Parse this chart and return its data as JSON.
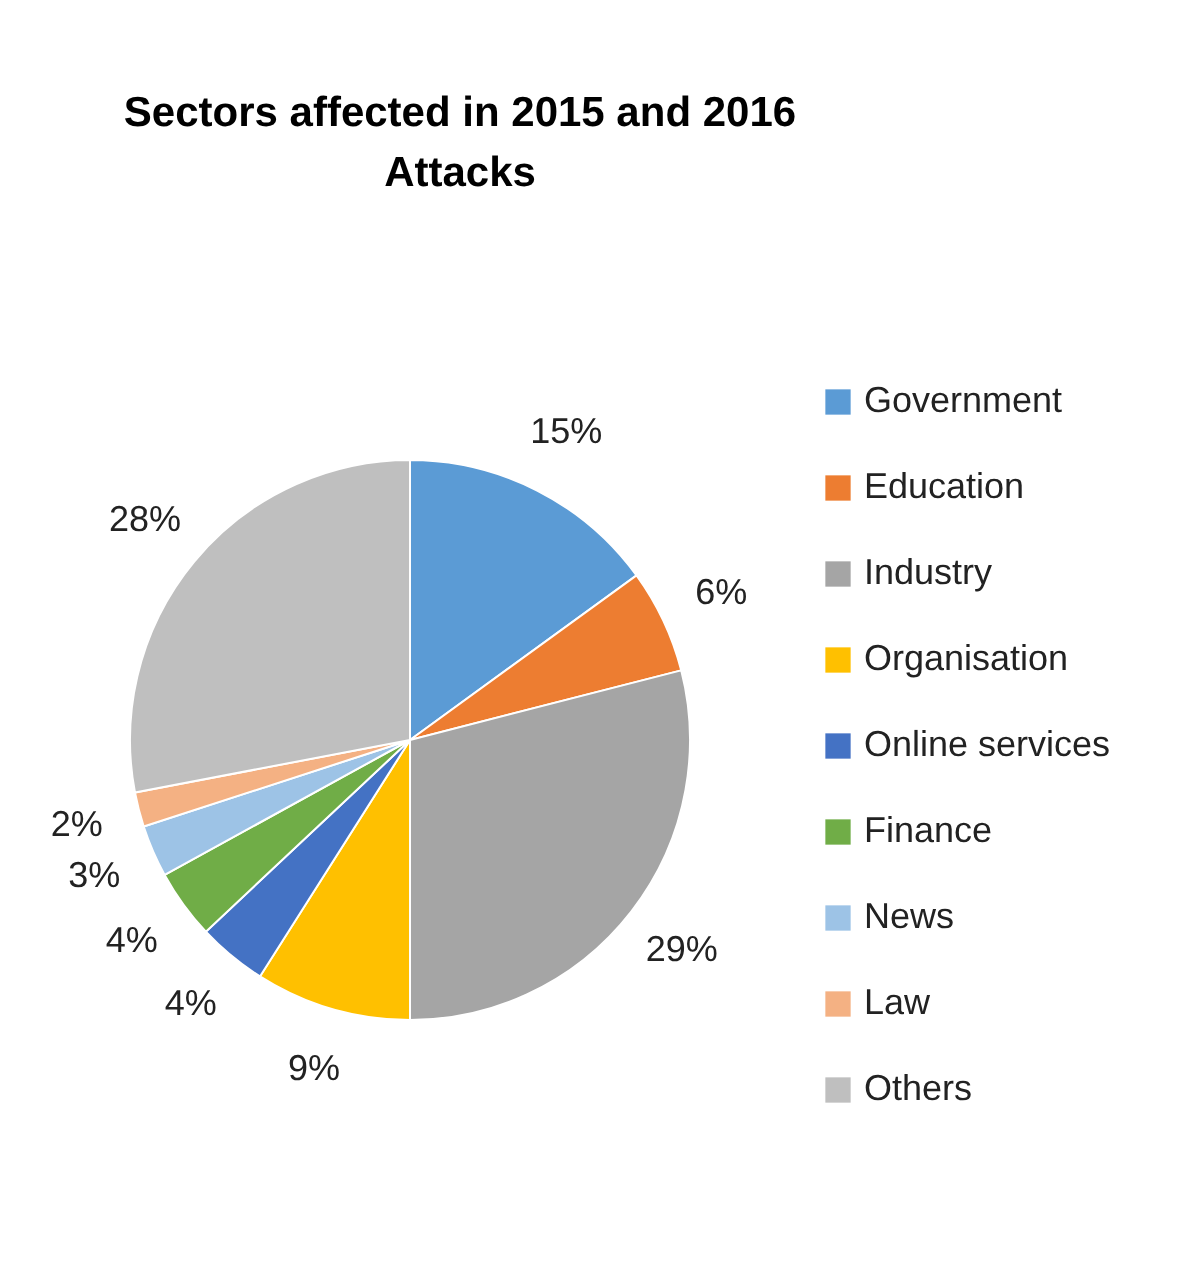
{
  "chart_data": {
    "type": "pie",
    "title": "Sectors affected in 2015 and 2016 Attacks",
    "categories": [
      "Government",
      "Education",
      "Industry",
      "Organisation",
      "Online services",
      "Finance",
      "News",
      "Law",
      "Others"
    ],
    "values": [
      15,
      6,
      29,
      9,
      4,
      4,
      3,
      2,
      28
    ],
    "value_labels": [
      "15%",
      "6%",
      "29%",
      "9%",
      "4%",
      "4%",
      "3%",
      "2%",
      "28%"
    ],
    "colors": [
      "#5b9bd5",
      "#ed7d31",
      "#a5a5a5",
      "#ffc000",
      "#4472c4",
      "#70ad47",
      "#9dc3e6",
      "#f4b183",
      "#bfbfbf"
    ],
    "legend": "right"
  }
}
